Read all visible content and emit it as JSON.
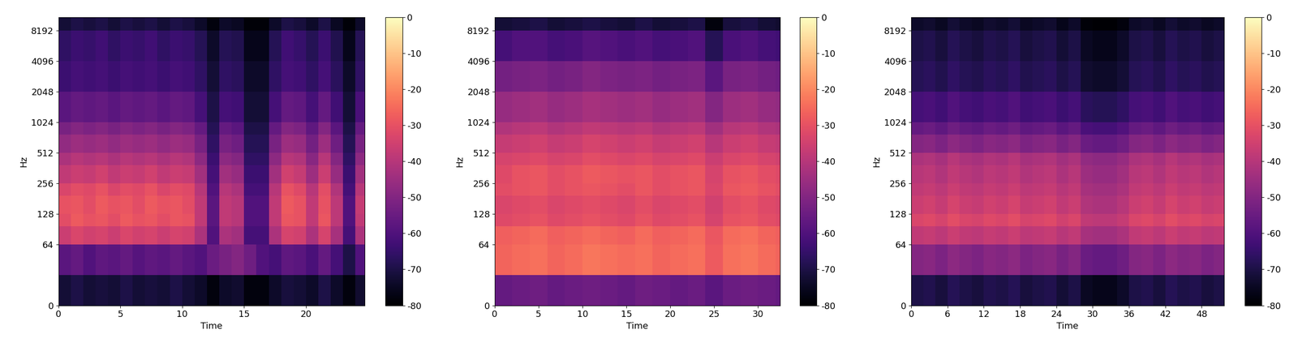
{
  "chart_data": [
    {
      "type": "heatmap",
      "x_label": "Time",
      "y_label": "Hz",
      "log": "y",
      "xlim": [
        0,
        24.75
      ],
      "xticks": [
        0,
        5,
        10,
        15,
        20
      ],
      "ylim": [
        0,
        11025
      ],
      "yticks": [
        0,
        64,
        128,
        256,
        512,
        1024,
        2048,
        4096,
        8192
      ],
      "colorbar_lim": [
        -80,
        0
      ],
      "colorbar_ticks": [
        0,
        -10,
        -20,
        -30,
        -40,
        -50,
        -60,
        -70,
        -80
      ],
      "x_edges": [
        0,
        1,
        2,
        3,
        4,
        5,
        6,
        7,
        8,
        9,
        10,
        11,
        12,
        13,
        14,
        15,
        16,
        17,
        18,
        19,
        20,
        21,
        22,
        23,
        24,
        25
      ],
      "y_edges": [
        0,
        32,
        64,
        96,
        128,
        192,
        256,
        384,
        512,
        768,
        1024,
        2048,
        4096,
        8192,
        11025
      ],
      "cells": [
        [
          -72,
          -70,
          -72,
          -71,
          -72,
          -70,
          -72,
          -71,
          -72,
          -70,
          -72,
          -74,
          -78,
          -74,
          -73,
          -78,
          -78,
          -74,
          -71,
          -72,
          -74,
          -70,
          -74,
          -78,
          -73
        ],
        [
          -58,
          -56,
          -60,
          -57,
          -58,
          -56,
          -59,
          -57,
          -58,
          -56,
          -58,
          -60,
          -55,
          -52,
          -50,
          -54,
          -60,
          -62,
          -57,
          -58,
          -61,
          -56,
          -62,
          -70,
          -60
        ],
        [
          -36,
          -33,
          -35,
          -34,
          -36,
          -33,
          -35,
          -34,
          -36,
          -34,
          -35,
          -42,
          -60,
          -42,
          -44,
          -62,
          -62,
          -42,
          -34,
          -35,
          -42,
          -34,
          -43,
          -62,
          -42
        ],
        [
          -31,
          -28,
          -30,
          -29,
          -31,
          -28,
          -30,
          -29,
          -31,
          -29,
          -30,
          -38,
          -58,
          -38,
          -40,
          -60,
          -60,
          -38,
          -29,
          -30,
          -38,
          -29,
          -39,
          -60,
          -38
        ],
        [
          -30,
          -29,
          -31,
          -28,
          -30,
          -29,
          -31,
          -28,
          -30,
          -29,
          -31,
          -38,
          -58,
          -38,
          -40,
          -60,
          -60,
          -38,
          -28,
          -30,
          -38,
          -30,
          -39,
          -60,
          -37
        ],
        [
          -33,
          -31,
          -32,
          -30,
          -33,
          -31,
          -32,
          -30,
          -33,
          -31,
          -32,
          -40,
          -60,
          -40,
          -42,
          -62,
          -62,
          -40,
          -30,
          -32,
          -40,
          -31,
          -41,
          -62,
          -40
        ],
        [
          -38,
          -36,
          -37,
          -35,
          -38,
          -36,
          -37,
          -35,
          -38,
          -36,
          -37,
          -44,
          -62,
          -44,
          -46,
          -64,
          -64,
          -44,
          -35,
          -37,
          -45,
          -36,
          -46,
          -64,
          -44
        ],
        [
          -42,
          -40,
          -41,
          -40,
          -42,
          -40,
          -41,
          -40,
          -42,
          -40,
          -41,
          -48,
          -64,
          -48,
          -50,
          -66,
          -66,
          -48,
          -40,
          -41,
          -49,
          -40,
          -50,
          -66,
          -48
        ],
        [
          -47,
          -45,
          -46,
          -45,
          -47,
          -45,
          -46,
          -45,
          -47,
          -45,
          -46,
          -52,
          -66,
          -52,
          -54,
          -68,
          -68,
          -52,
          -45,
          -46,
          -53,
          -45,
          -54,
          -68,
          -52
        ],
        [
          -52,
          -50,
          -51,
          -50,
          -52,
          -50,
          -51,
          -50,
          -52,
          -50,
          -51,
          -56,
          -68,
          -56,
          -58,
          -70,
          -70,
          -56,
          -50,
          -51,
          -57,
          -50,
          -58,
          -70,
          -56
        ],
        [
          -58,
          -56,
          -57,
          -56,
          -58,
          -56,
          -57,
          -56,
          -58,
          -56,
          -57,
          -62,
          -70,
          -62,
          -63,
          -72,
          -72,
          -62,
          -56,
          -57,
          -62,
          -56,
          -63,
          -72,
          -61
        ],
        [
          -64,
          -62,
          -63,
          -62,
          -64,
          -62,
          -63,
          -62,
          -64,
          -62,
          -63,
          -66,
          -72,
          -66,
          -67,
          -74,
          -74,
          -66,
          -62,
          -63,
          -66,
          -62,
          -67,
          -74,
          -66
        ],
        [
          -66,
          -64,
          -65,
          -63,
          -66,
          -64,
          -65,
          -63,
          -66,
          -64,
          -65,
          -68,
          -74,
          -68,
          -69,
          -76,
          -76,
          -68,
          -63,
          -65,
          -68,
          -64,
          -69,
          -76,
          -68
        ],
        [
          -72,
          -70,
          -71,
          -70,
          -72,
          -70,
          -71,
          -70,
          -72,
          -70,
          -71,
          -74,
          -78,
          -74,
          -75,
          -79,
          -79,
          -74,
          -70,
          -71,
          -74,
          -70,
          -75,
          -79,
          -74
        ]
      ]
    },
    {
      "type": "heatmap",
      "x_label": "Time",
      "y_label": "Hz",
      "log": "y",
      "xlim": [
        0,
        32.5
      ],
      "xticks": [
        0,
        5,
        10,
        15,
        20,
        25,
        30
      ],
      "ylim": [
        0,
        11025
      ],
      "yticks": [
        0,
        64,
        128,
        256,
        512,
        1024,
        2048,
        4096,
        8192
      ],
      "colorbar_lim": [
        -80,
        0
      ],
      "colorbar_ticks": [
        0,
        -10,
        -20,
        -30,
        -40,
        -50,
        -60,
        -70,
        -80
      ],
      "x_edges": [
        0,
        2,
        4,
        6,
        8,
        10,
        12,
        14,
        16,
        18,
        20,
        22,
        24,
        26,
        28,
        30,
        32,
        34
      ],
      "y_edges": [
        0,
        32,
        64,
        96,
        128,
        192,
        256,
        384,
        512,
        768,
        1024,
        2048,
        4096,
        8192,
        11025
      ],
      "cells": [
        [
          -56,
          -55,
          -54,
          -56,
          -55,
          -54,
          -55,
          -56,
          -54,
          -55,
          -56,
          -55,
          -58,
          -55,
          -54,
          -55,
          -56
        ],
        [
          -26,
          -25,
          -24,
          -26,
          -25,
          -23,
          -24,
          -25,
          -24,
          -26,
          -25,
          -24,
          -28,
          -24,
          -23,
          -25,
          -26
        ],
        [
          -27,
          -26,
          -25,
          -27,
          -26,
          -25,
          -26,
          -27,
          -25,
          -27,
          -26,
          -25,
          -29,
          -25,
          -24,
          -26,
          -27
        ],
        [
          -32,
          -31,
          -30,
          -32,
          -31,
          -30,
          -31,
          -32,
          -30,
          -32,
          -31,
          -30,
          -34,
          -30,
          -29,
          -31,
          -32
        ],
        [
          -33,
          -32,
          -31,
          -33,
          -32,
          -31,
          -32,
          -33,
          -31,
          -33,
          -32,
          -31,
          -35,
          -31,
          -30,
          -32,
          -33
        ],
        [
          -31,
          -30,
          -29,
          -31,
          -30,
          -29,
          -30,
          -31,
          -29,
          -31,
          -30,
          -29,
          -33,
          -29,
          -28,
          -30,
          -31
        ],
        [
          -32,
          -30,
          -29,
          -31,
          -30,
          -28,
          -29,
          -30,
          -29,
          -31,
          -30,
          -29,
          -34,
          -30,
          -29,
          -31,
          -32
        ],
        [
          -34,
          -33,
          -32,
          -34,
          -33,
          -31,
          -32,
          -33,
          -32,
          -34,
          -33,
          -32,
          -36,
          -33,
          -32,
          -34,
          -35
        ],
        [
          -37,
          -36,
          -35,
          -37,
          -36,
          -34,
          -35,
          -36,
          -35,
          -37,
          -36,
          -35,
          -40,
          -36,
          -35,
          -37,
          -38
        ],
        [
          -41,
          -40,
          -39,
          -41,
          -40,
          -38,
          -39,
          -40,
          -39,
          -41,
          -40,
          -39,
          -44,
          -40,
          -39,
          -41,
          -42
        ],
        [
          -46,
          -45,
          -44,
          -46,
          -45,
          -43,
          -44,
          -45,
          -44,
          -46,
          -45,
          -44,
          -50,
          -45,
          -44,
          -46,
          -47
        ],
        [
          -53,
          -52,
          -51,
          -53,
          -52,
          -50,
          -51,
          -52,
          -51,
          -53,
          -52,
          -51,
          -58,
          -52,
          -51,
          -53,
          -54
        ],
        [
          -62,
          -60,
          -60,
          -62,
          -61,
          -59,
          -60,
          -61,
          -60,
          -62,
          -61,
          -60,
          -68,
          -61,
          -60,
          -62,
          -63
        ],
        [
          -72,
          -71,
          -70,
          -72,
          -71,
          -70,
          -71,
          -72,
          -70,
          -72,
          -71,
          -70,
          -78,
          -71,
          -70,
          -72,
          -73
        ]
      ]
    },
    {
      "type": "heatmap",
      "x_label": "Time",
      "y_label": "Hz",
      "log": "y",
      "xlim": [
        0,
        51.7
      ],
      "xticks": [
        0,
        6,
        12,
        18,
        24,
        30,
        36,
        42,
        48
      ],
      "ylim": [
        0,
        11025
      ],
      "yticks": [
        0,
        64,
        128,
        256,
        512,
        1024,
        2048,
        4096,
        8192
      ],
      "colorbar_lim": [
        -80,
        0
      ],
      "colorbar_ticks": [
        0,
        -10,
        -20,
        -30,
        -40,
        -50,
        -60,
        -70,
        -80
      ],
      "x_edges": [
        0,
        2,
        4,
        6,
        8,
        10,
        12,
        14,
        16,
        18,
        20,
        22,
        24,
        26,
        28,
        30,
        32,
        34,
        36,
        38,
        40,
        42,
        44,
        46,
        48,
        50,
        52
      ],
      "y_edges": [
        0,
        32,
        64,
        96,
        128,
        192,
        256,
        384,
        512,
        768,
        1024,
        2048,
        4096,
        8192,
        11025
      ],
      "cells": [
        [
          -70,
          -69,
          -71,
          -68,
          -70,
          -71,
          -69,
          -70,
          -68,
          -71,
          -70,
          -69,
          -72,
          -70,
          -75,
          -76,
          -76,
          -74,
          -70,
          -69,
          -71,
          -68,
          -70,
          -69,
          -71,
          -70
        ],
        [
          -50,
          -49,
          -51,
          -48,
          -50,
          -51,
          -49,
          -50,
          -48,
          -51,
          -50,
          -49,
          -52,
          -50,
          -55,
          -56,
          -56,
          -54,
          -50,
          -49,
          -51,
          -48,
          -50,
          -49,
          -51,
          -50
        ],
        [
          -38,
          -37,
          -39,
          -36,
          -38,
          -39,
          -37,
          -38,
          -36,
          -39,
          -38,
          -37,
          -40,
          -38,
          -43,
          -44,
          -44,
          -42,
          -38,
          -37,
          -39,
          -36,
          -38,
          -37,
          -39,
          -38
        ],
        [
          -33,
          -32,
          -34,
          -31,
          -33,
          -34,
          -32,
          -33,
          -31,
          -34,
          -33,
          -32,
          -35,
          -33,
          -38,
          -39,
          -39,
          -37,
          -33,
          -32,
          -34,
          -31,
          -33,
          -32,
          -34,
          -33
        ],
        [
          -36,
          -35,
          -37,
          -34,
          -36,
          -37,
          -35,
          -36,
          -34,
          -37,
          -36,
          -35,
          -38,
          -36,
          -41,
          -42,
          -42,
          -40,
          -36,
          -35,
          -37,
          -34,
          -36,
          -35,
          -37,
          -36
        ],
        [
          -38,
          -37,
          -39,
          -36,
          -38,
          -39,
          -37,
          -38,
          -36,
          -39,
          -38,
          -37,
          -40,
          -38,
          -43,
          -44,
          -44,
          -42,
          -38,
          -37,
          -39,
          -36,
          -38,
          -37,
          -39,
          -38
        ],
        [
          -40,
          -39,
          -41,
          -38,
          -40,
          -41,
          -39,
          -40,
          -38,
          -41,
          -40,
          -39,
          -42,
          -40,
          -45,
          -46,
          -46,
          -44,
          -40,
          -39,
          -41,
          -38,
          -40,
          -39,
          -41,
          -40
        ],
        [
          -42,
          -41,
          -43,
          -40,
          -42,
          -43,
          -41,
          -42,
          -40,
          -43,
          -42,
          -41,
          -44,
          -42,
          -47,
          -48,
          -48,
          -46,
          -42,
          -41,
          -43,
          -40,
          -42,
          -41,
          -43,
          -42
        ],
        [
          -50,
          -49,
          -51,
          -48,
          -50,
          -51,
          -49,
          -50,
          -48,
          -51,
          -50,
          -49,
          -52,
          -50,
          -55,
          -56,
          -56,
          -54,
          -50,
          -49,
          -51,
          -48,
          -50,
          -49,
          -51,
          -50
        ],
        [
          -56,
          -55,
          -57,
          -54,
          -56,
          -57,
          -55,
          -56,
          -54,
          -57,
          -56,
          -55,
          -58,
          -56,
          -61,
          -62,
          -62,
          -60,
          -56,
          -55,
          -57,
          -54,
          -56,
          -55,
          -57,
          -56
        ],
        [
          -62,
          -61,
          -63,
          -60,
          -62,
          -63,
          -61,
          -62,
          -60,
          -63,
          -62,
          -61,
          -64,
          -62,
          -67,
          -68,
          -68,
          -66,
          -62,
          -61,
          -63,
          -60,
          -62,
          -61,
          -63,
          -62
        ],
        [
          -68,
          -67,
          -69,
          -66,
          -68,
          -69,
          -67,
          -68,
          -66,
          -69,
          -68,
          -67,
          -70,
          -68,
          -73,
          -74,
          -74,
          -72,
          -68,
          -67,
          -69,
          -66,
          -68,
          -67,
          -69,
          -68
        ],
        [
          -70,
          -69,
          -71,
          -68,
          -70,
          -71,
          -69,
          -70,
          -68,
          -71,
          -70,
          -69,
          -72,
          -70,
          -75,
          -76,
          -76,
          -74,
          -70,
          -69,
          -71,
          -68,
          -70,
          -69,
          -71,
          -70
        ],
        [
          -74,
          -73,
          -75,
          -72,
          -74,
          -75,
          -73,
          -74,
          -72,
          -75,
          -74,
          -73,
          -76,
          -74,
          -79,
          -80,
          -80,
          -78,
          -74,
          -73,
          -75,
          -72,
          -74,
          -73,
          -75,
          -74
        ]
      ]
    }
  ]
}
